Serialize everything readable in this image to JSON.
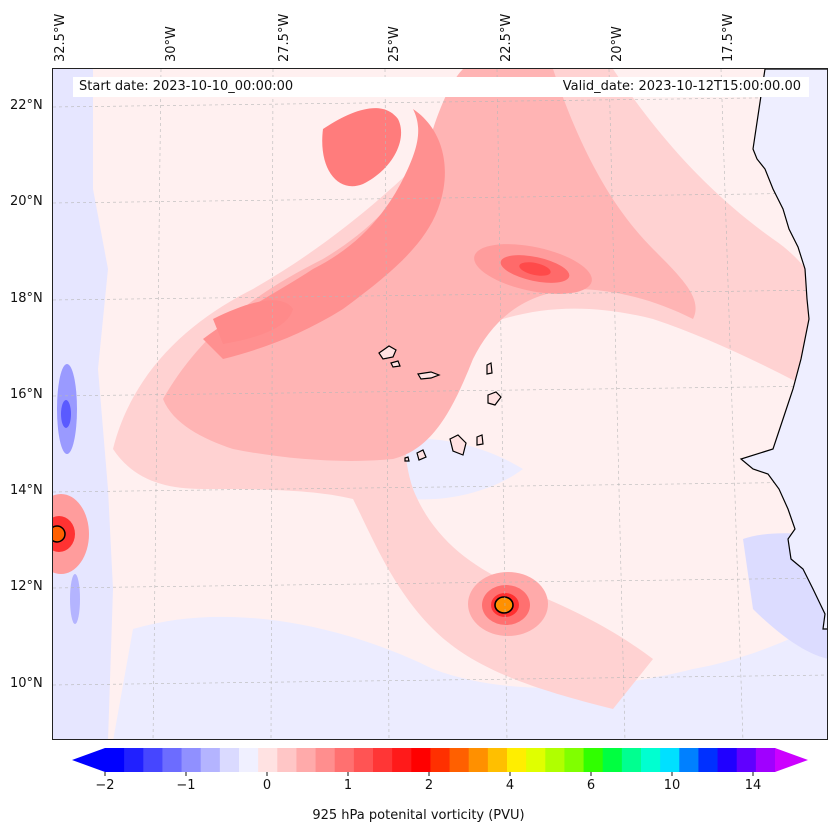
{
  "axes": {
    "lon_labels": [
      "32.5°W",
      "30°W",
      "27.5°W",
      "25°W",
      "22.5°W",
      "20°W",
      "17.5°W"
    ],
    "lat_labels": [
      "22°N",
      "20°N",
      "18°N",
      "16°N",
      "14°N",
      "12°N",
      "10°N"
    ]
  },
  "header": {
    "start_date": "Start date: 2023-10-10_00:00:00",
    "valid_date": "Valid_date: 2023-10-12T15:00:00.00"
  },
  "colorbar": {
    "label": "925 hPa potenital vorticity (PVU)",
    "tick_labels": [
      "−2",
      "−1",
      "0",
      "1",
      "2",
      "4",
      "6",
      "10",
      "14"
    ],
    "colors": [
      "#0000ff",
      "#2020ff",
      "#4646ff",
      "#6c6cff",
      "#9090ff",
      "#b4b4ff",
      "#dadaff",
      "#f0f0ff",
      "#ffe2e2",
      "#ffc6c6",
      "#ffaaaa",
      "#ff8e8e",
      "#ff7070",
      "#ff5454",
      "#ff3636",
      "#ff1a1a",
      "#ff0000",
      "#ff3000",
      "#ff6000",
      "#ff9000",
      "#ffbf00",
      "#ffee00",
      "#e0ff00",
      "#b0ff00",
      "#80ff00",
      "#30ff00",
      "#00ff40",
      "#00ff90",
      "#00ffd0",
      "#00e0ff",
      "#0080ff",
      "#0030ff",
      "#2000ff",
      "#6000ff",
      "#a000ff"
    ],
    "extend_low": "#0000ff",
    "extend_high": "#cc00ff"
  },
  "palette": {
    "background": "#fff0f0",
    "weak_positive": "#ffdada",
    "moderate_positive": "#ffb4b4",
    "strong_positive": "#ff8080",
    "negative": "#dcdcff",
    "strong_negative": "#6c6cff",
    "vortex_core": "#ff6000",
    "coastline": "#000000"
  }
}
